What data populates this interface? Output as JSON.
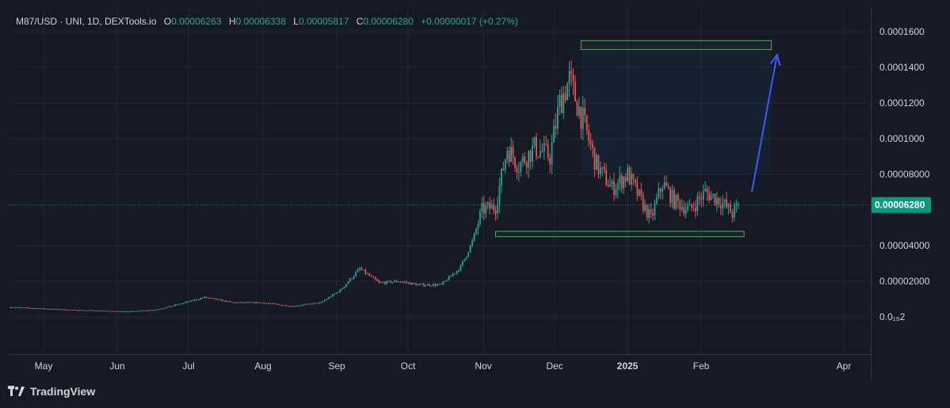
{
  "legend": {
    "symbol": "M87/USD · UNI, 1D, DEXTools.io",
    "open_label": "O",
    "open": "0.00006263",
    "high_label": "H",
    "high": "0.00006338",
    "low_label": "L",
    "low": "0.00005817",
    "close_label": "C",
    "close": "0.00006280",
    "change": "+0.00000017 (+0.27%)"
  },
  "footer": {
    "brand": "TradingView",
    "logo_icon": "tradingview-logo-icon"
  },
  "colors": {
    "up": "#26a69a",
    "down": "#ef5350",
    "bg": "#161a25",
    "grid": "#232632",
    "arrow": "#3d5afe",
    "zone": "#4caf50",
    "price_tag": "#089981"
  },
  "chart_data": {
    "type": "candlestick",
    "title": "M87/USD · UNI, 1D, DEXTools.io",
    "ylim": [
      -5e-06,
      0.000175
    ],
    "y_ticks": [
      {
        "value": 0.00016,
        "label": "0.0001600"
      },
      {
        "value": 0.00014,
        "label": "0.0001400"
      },
      {
        "value": 0.00012,
        "label": "0.0001200"
      },
      {
        "value": 0.0001,
        "label": "0.0001000"
      },
      {
        "value": 8e-05,
        "label": "0.00008000"
      },
      {
        "value": 4e-05,
        "label": "0.00004000"
      },
      {
        "value": 2e-05,
        "label": "0.00002000"
      },
      {
        "value": 0.0,
        "label": "0.0₁₅2"
      }
    ],
    "last_price": {
      "value": 6.28e-05,
      "label": "0.00006280"
    },
    "x_ticks": [
      {
        "label": "May",
        "bold": false
      },
      {
        "label": "Jun",
        "bold": false
      },
      {
        "label": "Jul",
        "bold": false
      },
      {
        "label": "Aug",
        "bold": false
      },
      {
        "label": "Sep",
        "bold": false
      },
      {
        "label": "Oct",
        "bold": false
      },
      {
        "label": "Nov",
        "bold": false
      },
      {
        "label": "Dec",
        "bold": false
      },
      {
        "label": "2025",
        "bold": true
      },
      {
        "label": "Feb",
        "bold": false
      },
      {
        "label": "Apr",
        "bold": false
      }
    ],
    "anchors": [
      [
        0,
        5.5e-06
      ],
      [
        30,
        4e-06
      ],
      [
        60,
        3e-06
      ],
      [
        75,
        4e-06
      ],
      [
        90,
        8e-06
      ],
      [
        100,
        1.1e-05
      ],
      [
        115,
        8e-06
      ],
      [
        130,
        8e-06
      ],
      [
        145,
        6e-06
      ],
      [
        160,
        8e-06
      ],
      [
        170,
        1.5e-05
      ],
      [
        180,
        2.7e-05
      ],
      [
        190,
        1.9e-05
      ],
      [
        200,
        2e-05
      ],
      [
        210,
        1.8e-05
      ],
      [
        222,
        1.8e-05
      ],
      [
        232,
        2.8e-05
      ],
      [
        238,
        4.2e-05
      ],
      [
        243,
        6e-05
      ],
      [
        250,
        6.2e-05
      ],
      [
        256,
        9.5e-05
      ],
      [
        262,
        8.5e-05
      ],
      [
        270,
        9.5e-05
      ],
      [
        278,
        9e-05
      ],
      [
        283,
        0.00012
      ],
      [
        288,
        0.000133
      ],
      [
        295,
        0.00011
      ],
      [
        302,
        8.5e-05
      ],
      [
        310,
        7.2e-05
      ],
      [
        318,
        8e-05
      ],
      [
        325,
        6.5e-05
      ],
      [
        330,
        5.5e-05
      ],
      [
        336,
        7.5e-05
      ],
      [
        342,
        6.5e-05
      ],
      [
        350,
        6e-05
      ],
      [
        358,
        7e-05
      ],
      [
        366,
        6.5e-05
      ],
      [
        372,
        5.8e-05
      ],
      [
        375,
        6.28e-05
      ]
    ],
    "annotations": {
      "resistance_zone": {
        "y_low": 0.00015,
        "y_high": 0.000155,
        "x_start": 294,
        "x_end": 392
      },
      "support_zone": {
        "y_low": 4.5e-05,
        "y_high": 4.8e-05,
        "x_start": 250,
        "x_end": 378
      },
      "arrow": {
        "from": [
          382,
          7e-05
        ],
        "to": [
          395,
          0.000147
        ]
      }
    }
  }
}
